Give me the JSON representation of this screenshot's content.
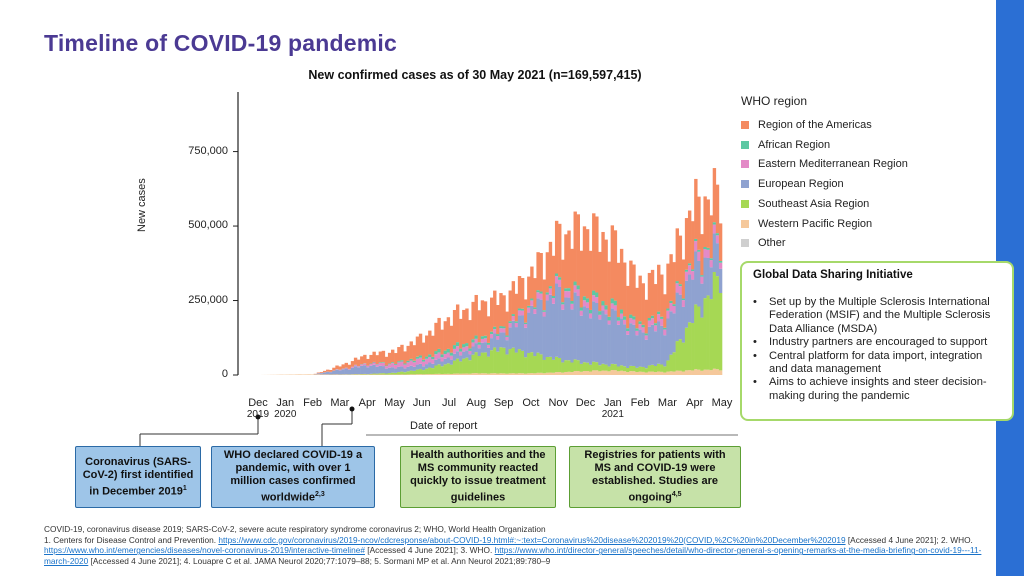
{
  "slide": {
    "title": "Timeline of COVID-19 pandemic",
    "accent_color": "#4b3a93",
    "bar_color": "#2b6fd4"
  },
  "chart_data": {
    "type": "bar",
    "stacked": true,
    "title": "New confirmed cases as of 30 May 2021 (n=169,597,415)",
    "xlabel": "Date of report",
    "ylabel": "New cases",
    "ylim": [
      0,
      950000
    ],
    "yticks": [
      0,
      250000,
      500000,
      750000
    ],
    "ytick_labels": [
      "0",
      "250,000",
      "500,000",
      "750,000"
    ],
    "x_ticks": [
      {
        "label": "Dec",
        "year": "2019"
      },
      {
        "label": "Jan",
        "year": "2020"
      },
      {
        "label": "Feb",
        "year": ""
      },
      {
        "label": "Mar",
        "year": ""
      },
      {
        "label": "Apr",
        "year": ""
      },
      {
        "label": "May",
        "year": ""
      },
      {
        "label": "Jun",
        "year": ""
      },
      {
        "label": "Jul",
        "year": ""
      },
      {
        "label": "Aug",
        "year": ""
      },
      {
        "label": "Sep",
        "year": ""
      },
      {
        "label": "Oct",
        "year": ""
      },
      {
        "label": "Nov",
        "year": ""
      },
      {
        "label": "Dec",
        "year": ""
      },
      {
        "label": "Jan",
        "year": "2021"
      },
      {
        "label": "Feb",
        "year": ""
      },
      {
        "label": "Mar",
        "year": ""
      },
      {
        "label": "Apr",
        "year": ""
      },
      {
        "label": "May",
        "year": ""
      }
    ],
    "legend_title": "WHO region",
    "legend_position": "right",
    "series_names": [
      "Other",
      "Western Pacific Region",
      "Southeast Asia Region",
      "European Region",
      "Eastern Mediterranean Region",
      "African Region",
      "Region of the Americas"
    ],
    "legend": [
      {
        "name": "Region of the Americas",
        "color": "#f48a60"
      },
      {
        "name": "African Region",
        "color": "#5cc8a3"
      },
      {
        "name": "Eastern Mediterranean Region",
        "color": "#e38ac7"
      },
      {
        "name": "European Region",
        "color": "#8fa2d0"
      },
      {
        "name": "Southeast Asia Region",
        "color": "#a6d854"
      },
      {
        "name": "Western Pacific Region",
        "color": "#f5c89b"
      },
      {
        "name": "Other",
        "color": "#cfcfcf"
      }
    ],
    "series_colors": [
      "#cfcfcf",
      "#f5c89b",
      "#a6d854",
      "#8fa2d0",
      "#e38ac7",
      "#5cc8a3",
      "#f48a60"
    ],
    "monthly_stack_estimates": {
      "months": [
        "Dec 2019",
        "Jan 2020",
        "Feb 2020",
        "Mar 2020",
        "Apr 2020",
        "May 2020",
        "Jun 2020",
        "Jul 2020",
        "Aug 2020",
        "Sep 2020",
        "Oct 2020",
        "Nov 2020",
        "Dec 2020",
        "Jan 2021",
        "Feb 2021",
        "Mar 2021",
        "Apr 2021",
        "May 2021"
      ],
      "Other": [
        0,
        0,
        0,
        0,
        0,
        0,
        0,
        0,
        0,
        0,
        0,
        0,
        0,
        0,
        0,
        0,
        0,
        0
      ],
      "Western Pacific Region": [
        0,
        1500,
        2500,
        1500,
        2000,
        1500,
        3000,
        4500,
        6500,
        6000,
        6500,
        10000,
        15000,
        17000,
        12000,
        12000,
        19000,
        21000
      ],
      "Southeast Asia Region": [
        0,
        0,
        0,
        500,
        2000,
        7000,
        18000,
        40000,
        70000,
        95000,
        75000,
        50000,
        33000,
        21000,
        17000,
        30000,
        200000,
        350000
      ],
      "European Region": [
        0,
        0,
        0,
        18000,
        33000,
        18000,
        17000,
        22000,
        30000,
        55000,
        160000,
        250000,
        210000,
        190000,
        130000,
        150000,
        180000,
        110000
      ],
      "Eastern Mediterranean Region": [
        0,
        0,
        0,
        1500,
        6000,
        15000,
        21000,
        18000,
        14000,
        15000,
        19000,
        25000,
        22000,
        17000,
        18000,
        28000,
        35000,
        27000
      ],
      "African Region": [
        0,
        0,
        0,
        500,
        1500,
        3500,
        8000,
        14000,
        11000,
        7000,
        6500,
        9000,
        15000,
        17000,
        10000,
        8000,
        7000,
        8000
      ],
      "Region of the Americas": [
        0,
        0,
        0,
        14000,
        32000,
        45000,
        75000,
        120000,
        135000,
        115000,
        110000,
        180000,
        265000,
        250000,
        160000,
        160000,
        200000,
        170000
      ]
    }
  },
  "gdsi": {
    "title": "Global Data Sharing Initiative",
    "bullets": [
      "Set up by the Multiple Sclerosis International Federation (MSIF) and the Multiple Sclerosis Data Alliance (MSDA)",
      "Industry partners are encouraged to support",
      "Central platform for data import, integration and data management",
      "Aims to achieve insights and steer decision-making during the pandemic"
    ]
  },
  "events": [
    {
      "text": "Coronavirus (SARS-CoV-2) first identified in December 2019",
      "sup": "1"
    },
    {
      "text": "WHO declared COVID-19 a pandemic, with over 1 million cases confirmed worldwide",
      "sup": "2,3"
    },
    {
      "text": "Health authorities and the MS community reacted quickly to issue treatment guidelines",
      "sup": ""
    },
    {
      "text": "Registries for patients with MS and COVID-19 were established. Studies are ongoing",
      "sup": "4,5"
    }
  ],
  "footnotes": {
    "abbreviations": "COVID-19, coronavirus disease 2019; SARS-CoV-2, severe acute respiratory syndrome coronavirus 2; WHO, World Health Organization",
    "ref1_text": "1. Centers for Disease Control and Prevention.",
    "ref1_link": "https://www.cdc.gov/coronavirus/2019-ncov/cdcresponse/about-COVID-19.html#:~:text=Coronavirus%20disease%202019%20(COVID,%2C%20in%20December%202019",
    "ref1_access": "[Accessed 4 June 2021]; 2. WHO.",
    "ref2_link": "https://www.who.int/emergencies/diseases/novel-coronavirus-2019/interactive-timeline#",
    "ref2_access": "[Accessed 4 June 2021]; 3. WHO.",
    "ref3_link": "https://www.who.int/director-general/speeches/detail/who-director-general-s-opening-remarks-at-the-media-briefing-on-covid-19---11-march-2020",
    "ref3_tail": "[Accessed 4 June 2021]; 4. Louapre C et al. JAMA Neurol 2020;77:1079–88; 5. Sormani MP et al. Ann Neurol 2021;89:780–9"
  }
}
